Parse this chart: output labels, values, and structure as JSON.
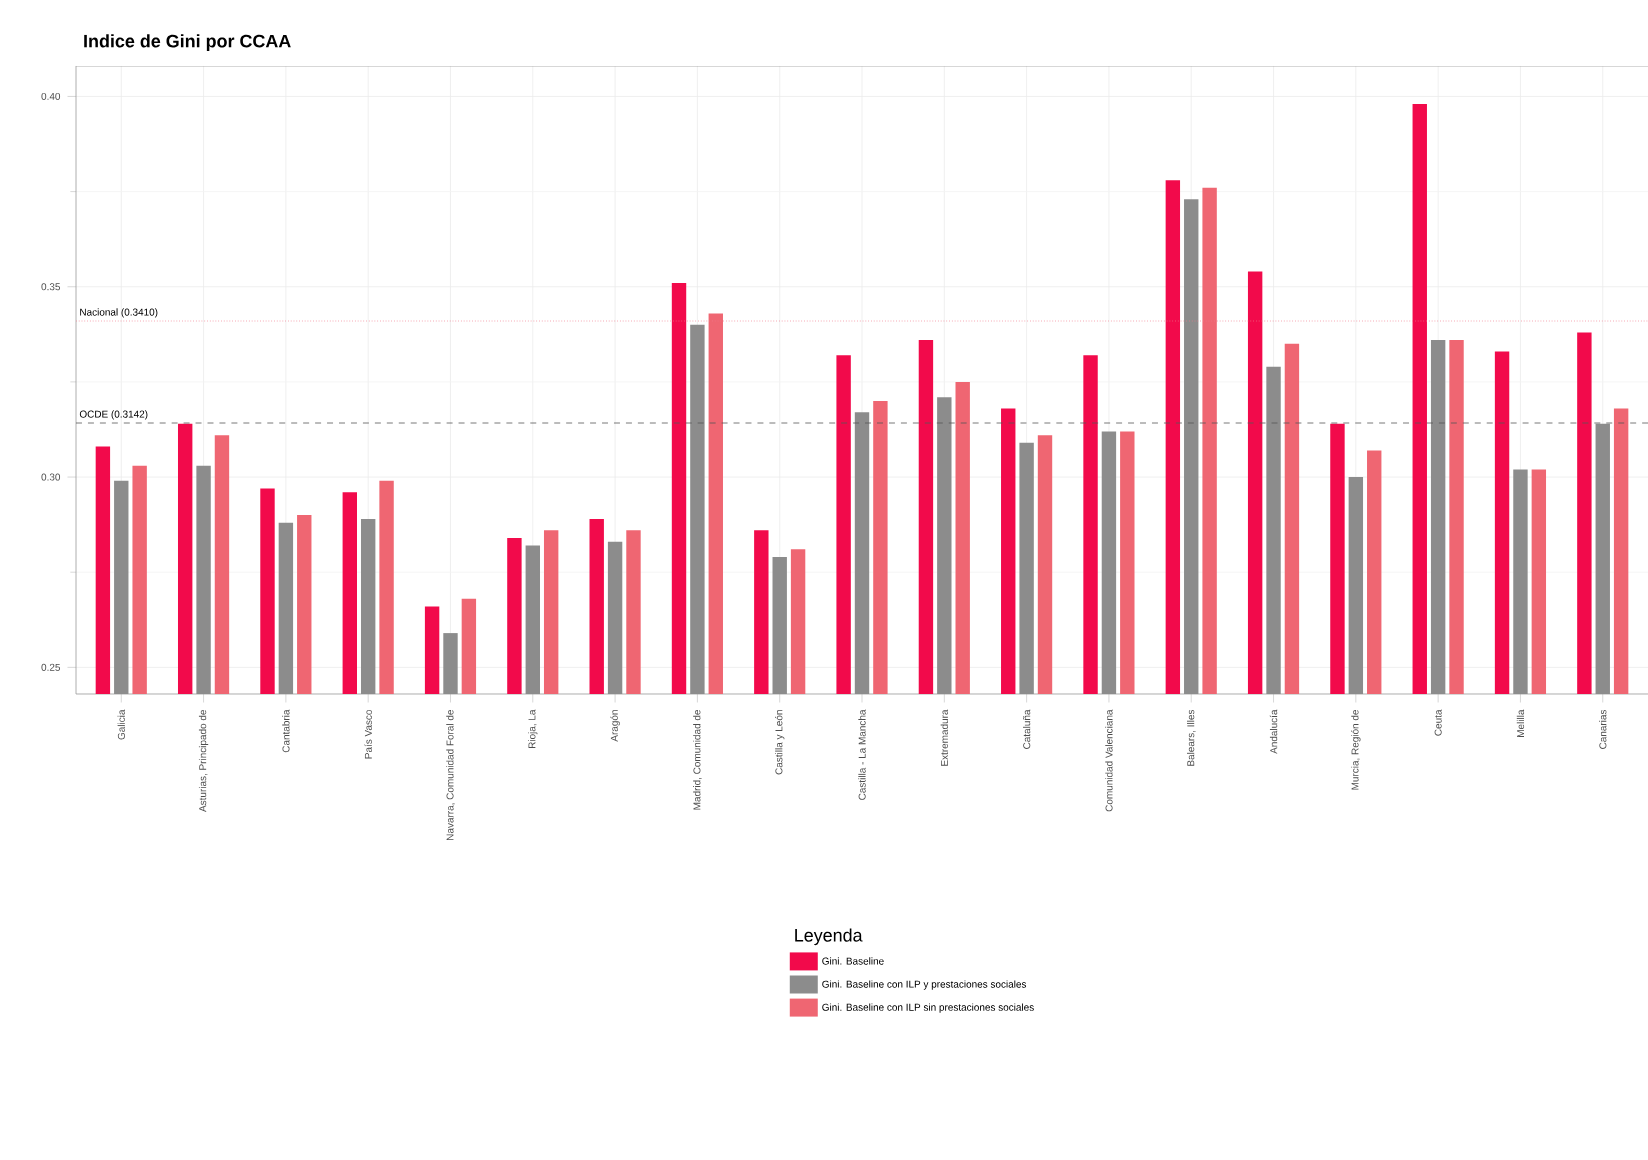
{
  "chart_data": {
    "type": "bar",
    "title": "Indice de Gini por CCAA",
    "legend_title": "Leyenda",
    "categories": [
      "Galicia",
      "Asturias, Principado de",
      "Cantabria",
      "País Vasco",
      "Navarra, Comunidad Foral de",
      "Rioja, La",
      "Aragón",
      "Madrid, Comunidad de",
      "Castilla y León",
      "Castilla - La Mancha",
      "Extremadura",
      "Cataluña",
      "Comunidad Valenciana",
      "Balears, Illes",
      "Andalucía",
      "Murcia, Región de",
      "Ceuta",
      "Melilla",
      "Canarias"
    ],
    "series": [
      {
        "name": "Gini. Baseline",
        "color": "#f20a4b",
        "values": [
          0.308,
          0.314,
          0.297,
          0.296,
          0.266,
          0.284,
          0.289,
          0.351,
          0.286,
          0.332,
          0.336,
          0.318,
          0.332,
          0.378,
          0.354,
          0.314,
          0.398,
          0.333,
          0.338
        ]
      },
      {
        "name": "Gini. Baseline con ILP y prestaciones sociales",
        "color": "#8c8c8c",
        "values": [
          0.299,
          0.303,
          0.288,
          0.289,
          0.259,
          0.282,
          0.283,
          0.34,
          0.279,
          0.317,
          0.321,
          0.309,
          0.312,
          0.373,
          0.329,
          0.3,
          0.336,
          0.302,
          0.314
        ]
      },
      {
        "name": "Gini. Baseline con ILP sin prestaciones sociales",
        "color": "#ef6672",
        "values": [
          0.303,
          0.311,
          0.29,
          0.299,
          0.268,
          0.286,
          0.286,
          0.343,
          0.281,
          0.32,
          0.325,
          0.311,
          0.312,
          0.376,
          0.335,
          0.307,
          0.336,
          0.302,
          0.318
        ]
      }
    ],
    "ylim": [
      0.243,
      0.408
    ],
    "yticks": [
      {
        "value": 0.25,
        "label": "0.25"
      },
      {
        "value": 0.3,
        "label": "0.30"
      },
      {
        "value": 0.35,
        "label": "0.35"
      },
      {
        "value": 0.4,
        "label": "0.40"
      }
    ],
    "ref_lines": [
      {
        "axis": "y",
        "value": 0.341,
        "label": "Nacional (0.3410)",
        "color": "#f0798a",
        "line_style": "dotted"
      },
      {
        "axis": "y",
        "value": 0.3142,
        "label": "OCDE (0.3142)",
        "color": "#555555",
        "line_style": "dashed"
      }
    ],
    "grid": true,
    "legend": "bottom"
  }
}
